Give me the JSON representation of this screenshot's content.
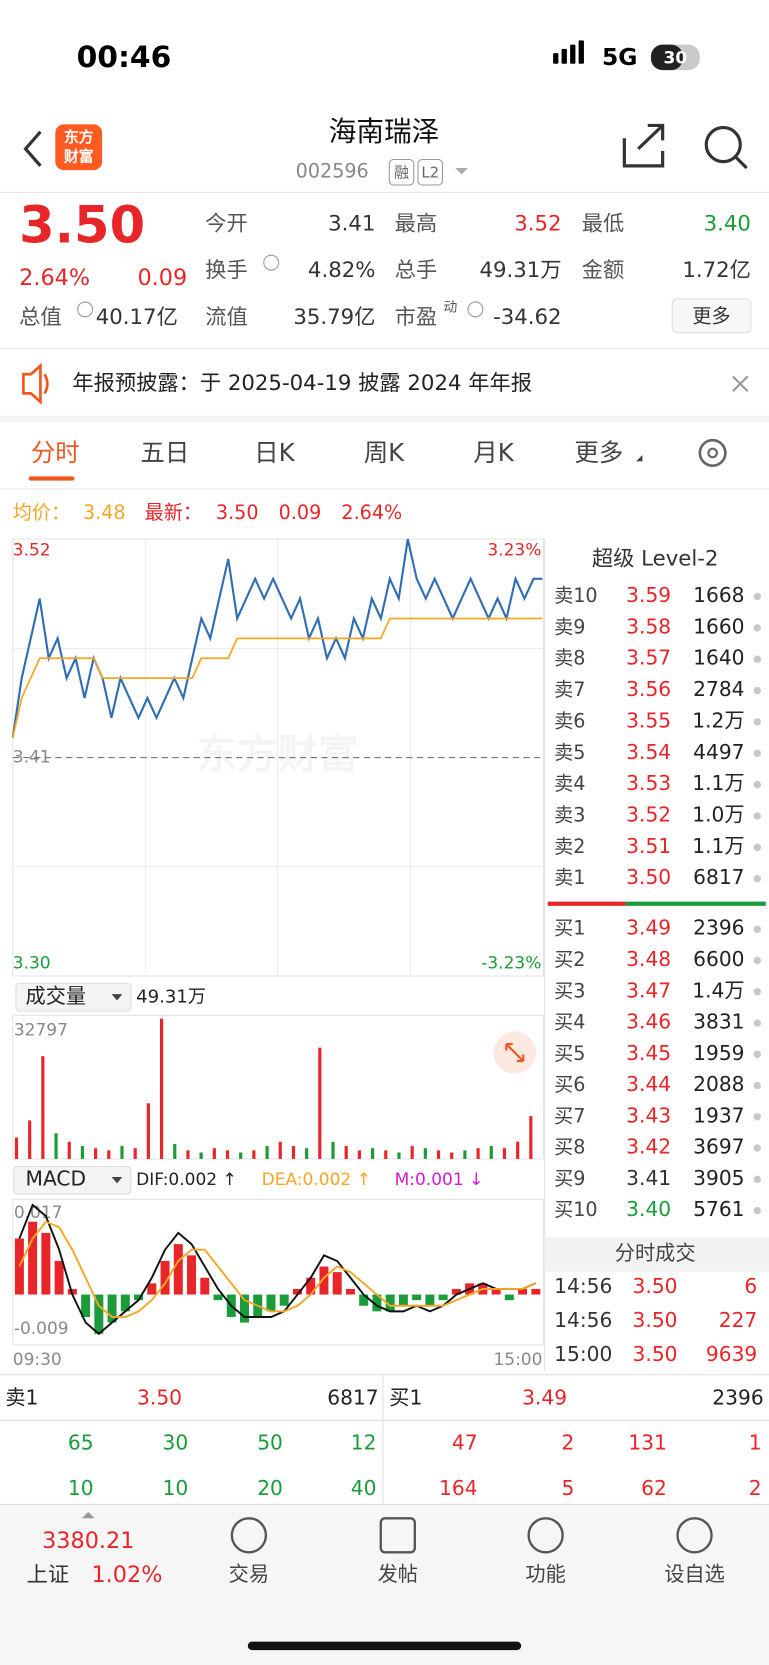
{
  "status": {
    "time": "00:46",
    "network": "5G",
    "battery": "30"
  },
  "header": {
    "logo": [
      "东方",
      "财富"
    ],
    "title": "海南瑞泽",
    "code": "002596",
    "badges": [
      "融",
      "L2"
    ]
  },
  "quote": {
    "price": "3.50",
    "change_pct": "2.64%",
    "change": "0.09",
    "stats": [
      {
        "label": "今开",
        "value": "3.41"
      },
      {
        "label": "最高",
        "value": "3.52"
      },
      {
        "label": "最低",
        "value": "3.40"
      },
      {
        "label": "换手",
        "value": "4.82%"
      },
      {
        "label": "总手",
        "value": "49.31万"
      },
      {
        "label": "金额",
        "value": "1.72亿"
      },
      {
        "label": "总值",
        "value": "40.17亿"
      },
      {
        "label": "流值",
        "value": "35.79亿"
      },
      {
        "label": "市盈",
        "sup": "动",
        "value": "-34.62"
      }
    ],
    "more": "更多"
  },
  "notice": "年报预披露：于 2025-04-19 披露 2024 年年报",
  "tabs": [
    "分时",
    "五日",
    "日K",
    "周K",
    "月K",
    "更多"
  ],
  "summary": {
    "avg_label": "均价：",
    "avg": "3.48",
    "latest_label": "最新：",
    "latest": "3.50",
    "change": "0.09",
    "change_pct": "2.64%"
  },
  "watermark": "东方财富",
  "intraday": {
    "type": "line",
    "ylim": [
      3.3,
      3.52
    ],
    "yticks": [
      3.52,
      3.41,
      {
        "value": 3.3,
        "label": "3.30"
      }
    ],
    "pct_labels": [
      "3.23%",
      "-3.23%"
    ],
    "series": [
      {
        "color": "#2f6db5",
        "values": [
          3.42,
          3.45,
          3.47,
          3.49,
          3.46,
          3.47,
          3.45,
          3.46,
          3.44,
          3.46,
          3.45,
          3.43,
          3.45,
          3.44,
          3.43,
          3.44,
          3.43,
          3.44,
          3.45,
          3.44,
          3.46,
          3.48,
          3.47,
          3.49,
          3.51,
          3.48,
          3.49,
          3.5,
          3.49,
          3.5,
          3.49,
          3.48,
          3.49,
          3.47,
          3.48,
          3.46,
          3.47,
          3.46,
          3.48,
          3.47,
          3.49,
          3.48,
          3.5,
          3.49,
          3.52,
          3.5,
          3.49,
          3.5,
          3.49,
          3.48,
          3.49,
          3.5,
          3.49,
          3.48,
          3.49,
          3.48,
          3.5,
          3.49,
          3.5,
          3.5
        ]
      },
      {
        "color": "#f5a623",
        "values": [
          3.42,
          3.44,
          3.45,
          3.46,
          3.46,
          3.46,
          3.46,
          3.46,
          3.46,
          3.46,
          3.45,
          3.45,
          3.45,
          3.45,
          3.45,
          3.45,
          3.45,
          3.45,
          3.45,
          3.45,
          3.45,
          3.46,
          3.46,
          3.46,
          3.46,
          3.47,
          3.47,
          3.47,
          3.47,
          3.47,
          3.47,
          3.47,
          3.47,
          3.47,
          3.47,
          3.47,
          3.47,
          3.47,
          3.47,
          3.47,
          3.47,
          3.47,
          3.48,
          3.48,
          3.48,
          3.48,
          3.48,
          3.48,
          3.48,
          3.48,
          3.48,
          3.48,
          3.48,
          3.48,
          3.48,
          3.48,
          3.48,
          3.48,
          3.48,
          3.48
        ]
      }
    ]
  },
  "volume": {
    "type": "bar",
    "label": "成交量",
    "total": "49.31万",
    "ylim": [
      0,
      32797
    ],
    "yticks": [
      32797
    ],
    "values": [
      5000,
      9000,
      24000,
      6000,
      4000,
      3000,
      2500,
      2000,
      3000,
      2500,
      13000,
      32797,
      3500,
      2000,
      1500,
      2500,
      2000,
      1500,
      2000,
      3000,
      4000,
      3000,
      2500,
      26000,
      4000,
      3000,
      2000,
      2500,
      2000,
      1500,
      3000,
      2500,
      2000,
      1500,
      2000,
      2500,
      3000,
      2500,
      4000,
      10000
    ],
    "colors": [
      "#e8262a",
      "#e8262a",
      "#e8262a",
      "#1a9c3a",
      "#e8262a",
      "#1a9c3a",
      "#e8262a",
      "#e8262a",
      "#1a9c3a",
      "#e8262a",
      "#e8262a",
      "#e8262a",
      "#1a9c3a",
      "#e8262a",
      "#1a9c3a",
      "#e8262a",
      "#e8262a",
      "#1a9c3a",
      "#e8262a",
      "#1a9c3a",
      "#e8262a",
      "#e8262a",
      "#1a9c3a",
      "#e8262a",
      "#1a9c3a",
      "#e8262a",
      "#e8262a",
      "#1a9c3a",
      "#e8262a",
      "#1a9c3a",
      "#e8262a",
      "#1a9c3a",
      "#e8262a",
      "#e8262a",
      "#1a9c3a",
      "#e8262a",
      "#1a9c3a",
      "#e8262a",
      "#e8262a",
      "#e8262a"
    ]
  },
  "macd": {
    "type": "bar",
    "label": "MACD",
    "dif_label": "DIF:0.002 ↑",
    "dea_label": "DEA:0.002 ↑",
    "m_label": "M:0.001 ↓",
    "ylim": [
      -0.009,
      0.017
    ],
    "yticks": [
      0.017,
      -0.009
    ],
    "xlabels": [
      "09:30",
      "15:00"
    ],
    "hist": [
      0.01,
      0.013,
      0.011,
      0.006,
      0.001,
      -0.004,
      -0.007,
      -0.005,
      -0.003,
      -0.001,
      0.002,
      0.006,
      0.009,
      0.007,
      0.003,
      -0.001,
      -0.004,
      -0.005,
      -0.004,
      -0.003,
      -0.002,
      0.001,
      0.003,
      0.005,
      0.004,
      0.001,
      -0.002,
      -0.003,
      -0.003,
      -0.002,
      -0.001,
      -0.002,
      -0.001,
      0.001,
      0.002,
      0.002,
      0.001,
      -0.001,
      0.001,
      0.001
    ],
    "dif": {
      "color": "#111111",
      "values": [
        0.01,
        0.016,
        0.014,
        0.008,
        0,
        -0.005,
        -0.007,
        -0.005,
        -0.003,
        -0.001,
        0.003,
        0.008,
        0.011,
        0.009,
        0.005,
        0.001,
        -0.002,
        -0.004,
        -0.004,
        -0.004,
        -0.003,
        0,
        0.003,
        0.007,
        0.006,
        0.003,
        0,
        -0.002,
        -0.003,
        -0.003,
        -0.002,
        -0.003,
        -0.002,
        0,
        0.001,
        0.002,
        0.001,
        0.001,
        0.001,
        0.002
      ]
    },
    "dea": {
      "color": "#f5a623",
      "values": [
        0.005,
        0.01,
        0.013,
        0.012,
        0.008,
        0.003,
        -0.002,
        -0.004,
        -0.004,
        -0.003,
        -0.001,
        0.002,
        0.006,
        0.008,
        0.008,
        0.005,
        0.002,
        -0.001,
        -0.002,
        -0.003,
        -0.003,
        -0.002,
        0,
        0.003,
        0.005,
        0.004,
        0.002,
        0,
        -0.002,
        -0.002,
        -0.002,
        -0.002,
        -0.002,
        -0.001,
        0,
        0.001,
        0.001,
        0.001,
        0.001,
        0.002
      ]
    }
  },
  "level2": {
    "title": "超级 Level-2",
    "asks": [
      {
        "name": "卖10",
        "price": "3.59",
        "volume": "1668",
        "color": "#e8262a"
      },
      {
        "name": "卖9",
        "price": "3.58",
        "volume": "1660",
        "color": "#e8262a"
      },
      {
        "name": "卖8",
        "price": "3.57",
        "volume": "1640",
        "color": "#e8262a"
      },
      {
        "name": "卖7",
        "price": "3.56",
        "volume": "2784",
        "color": "#e8262a"
      },
      {
        "name": "卖6",
        "price": "3.55",
        "volume": "1.2万",
        "color": "#e8262a"
      },
      {
        "name": "卖5",
        "price": "3.54",
        "volume": "4497",
        "color": "#e8262a"
      },
      {
        "name": "卖4",
        "price": "3.53",
        "volume": "1.1万",
        "color": "#e8262a"
      },
      {
        "name": "卖3",
        "price": "3.52",
        "volume": "1.0万",
        "color": "#e8262a"
      },
      {
        "name": "卖2",
        "price": "3.51",
        "volume": "1.1万",
        "color": "#e8262a"
      },
      {
        "name": "卖1",
        "price": "3.50",
        "volume": "6817",
        "color": "#e8262a"
      }
    ],
    "bids": [
      {
        "name": "买1",
        "price": "3.49",
        "volume": "2396",
        "color": "#e8262a"
      },
      {
        "name": "买2",
        "price": "3.48",
        "volume": "6600",
        "color": "#e8262a"
      },
      {
        "name": "买3",
        "price": "3.47",
        "volume": "1.4万",
        "color": "#e8262a"
      },
      {
        "name": "买4",
        "price": "3.46",
        "volume": "3831",
        "color": "#e8262a"
      },
      {
        "name": "买5",
        "price": "3.45",
        "volume": "1959",
        "color": "#e8262a"
      },
      {
        "name": "买6",
        "price": "3.44",
        "volume": "2088",
        "color": "#e8262a"
      },
      {
        "name": "买7",
        "price": "3.43",
        "volume": "1937",
        "color": "#e8262a"
      },
      {
        "name": "买8",
        "price": "3.42",
        "volume": "3697",
        "color": "#e8262a"
      },
      {
        "name": "买9",
        "price": "3.41",
        "volume": "3905",
        "color": "#333333"
      },
      {
        "name": "买10",
        "price": "3.40",
        "volume": "5761",
        "color": "#1a9c3a"
      }
    ]
  },
  "trades": {
    "title": "分时成交",
    "rows": [
      {
        "time": "14:56",
        "price": "3.50",
        "volume": "6"
      },
      {
        "time": "14:56",
        "price": "3.50",
        "volume": "227"
      },
      {
        "time": "15:00",
        "price": "3.50",
        "volume": "9639"
      }
    ]
  },
  "book": {
    "ask": {
      "name": "卖1",
      "price": "3.50",
      "volume": "6817"
    },
    "bid": {
      "name": "买1",
      "price": "3.49",
      "volume": "2396"
    },
    "ask_queue": [
      [
        "65",
        "30",
        "50",
        "12"
      ],
      [
        "10",
        "10",
        "20",
        "40"
      ]
    ],
    "bid_queue": [
      [
        "47",
        "2",
        "131",
        "1"
      ],
      [
        "164",
        "5",
        "62",
        "2"
      ]
    ]
  },
  "nav": {
    "index_value": "3380.21",
    "index_name": "上证",
    "index_pct": "1.02%",
    "items": [
      "交易",
      "发帖",
      "功能",
      "设自选"
    ]
  }
}
